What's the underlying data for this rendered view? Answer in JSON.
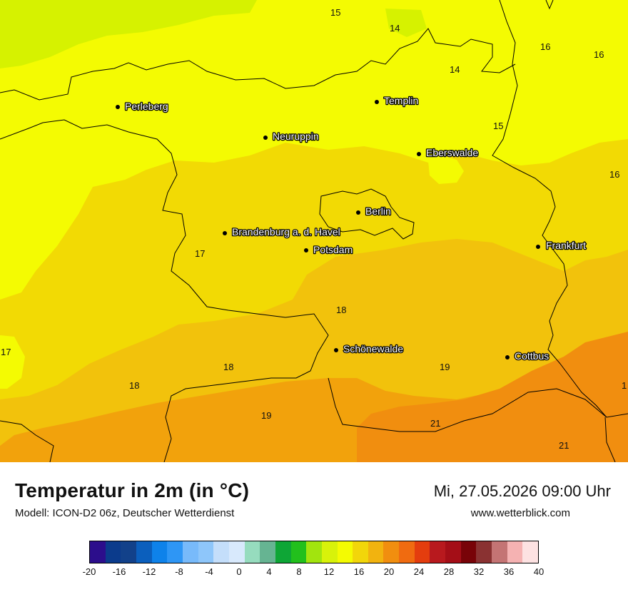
{
  "header": {
    "title": "Temperatur in 2m (in °C)",
    "model": "Modell: ICON-D2 06z, Deutscher Wetterdienst",
    "datetime": "Mi, 27.05.2026 09:00 Uhr",
    "website": "www.wetterblick.com"
  },
  "cities": [
    {
      "name": "Perleberg"
    },
    {
      "name": "Templin"
    },
    {
      "name": "Neuruppin"
    },
    {
      "name": "Eberswalde"
    },
    {
      "name": "Berlin"
    },
    {
      "name": "Brandenburg a. d. Havel"
    },
    {
      "name": "Potsdam"
    },
    {
      "name": "Frankfurt"
    },
    {
      "name": "Schönewalde"
    },
    {
      "name": "Cottbus"
    }
  ],
  "temperature_labels": [
    "15",
    "14",
    "14",
    "16",
    "16",
    "15",
    "16",
    "16",
    "17",
    "18",
    "17",
    "18",
    "18",
    "19",
    "19",
    "21",
    "21",
    "1"
  ],
  "legend": {
    "ticks": [
      "-20",
      "-16",
      "-12",
      "-8",
      "-4",
      "0",
      "4",
      "8",
      "12",
      "16",
      "20",
      "24",
      "28",
      "32",
      "36",
      "40"
    ],
    "colors": [
      "#2c0e8c",
      "#0b3b8c",
      "#12418a",
      "#0b5fbd",
      "#0e82ea",
      "#2e96f5",
      "#78bafa",
      "#8ec6fa",
      "#c4defa",
      "#d8e9fc",
      "#96dcbe",
      "#66b492",
      "#0ea636",
      "#22c01c",
      "#a2e40e",
      "#d8f20a",
      "#f4fb02",
      "#f2d60a",
      "#f2b30f",
      "#f18e0f",
      "#f06b10",
      "#e43d0e",
      "#b8191e",
      "#a40e17",
      "#780308",
      "#8a3232",
      "#c47474",
      "#f5b2b2",
      "#fde2e2"
    ]
  },
  "map_colors": {
    "green_yellow": "#d6f200",
    "yellow": "#f4fb02",
    "yellow_orange": "#f2da04",
    "light_orange": "#f2c20c",
    "orange": "#f2a20c",
    "deep_orange": "#f18e0f",
    "border": "#000000"
  }
}
